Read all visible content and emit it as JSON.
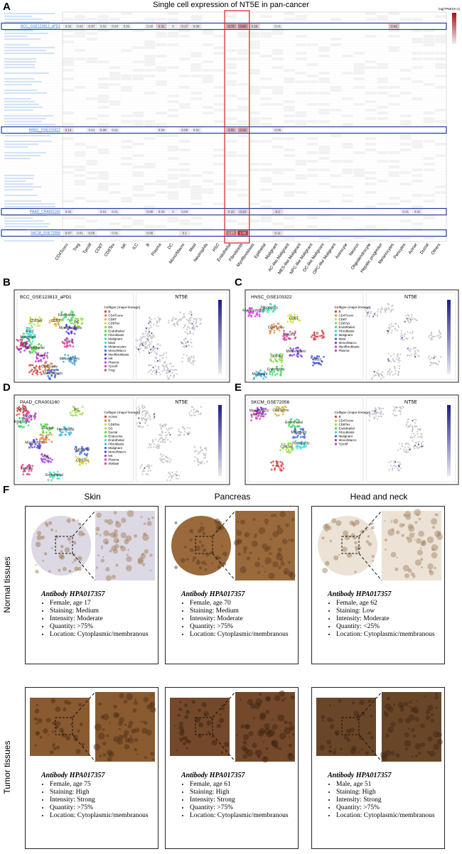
{
  "panel_labels": [
    "A",
    "B",
    "C",
    "D",
    "E",
    "F"
  ],
  "heatmap": {
    "title": "Single cell expression of NT5E in pan-cancer",
    "colorbar_label": "log(TPM/10+1)",
    "color_lim": [
      0,
      2
    ],
    "columns": [
      "CD4Tconv",
      "Treg",
      "Tprolif",
      "CD8T",
      "CD8Tex",
      "NK",
      "ILC",
      "B",
      "Plasma",
      "DC",
      "Mono/Macro",
      "Mast",
      "Neutrophils",
      "HSC",
      "Endothelial",
      "Fibroblasts",
      "Myofibroblasts",
      "Epithelial",
      "Malignant",
      "AC-like Malignant",
      "MES-like Malignant",
      "NPC-like Malignant",
      "OC-like Malignant",
      "OPC-like Malignant",
      "Astrocyte",
      "Neuron",
      "Oligodendrocyte",
      "Hepatic progenitor",
      "Melanocytes",
      "Pericytes",
      "Acinar",
      "Ductal",
      "Others"
    ],
    "rows": [
      {
        "name": "BCC_GSE123813_aPD1",
        "values": [
          0.02,
          0.02,
          0.07,
          0.02,
          0.04,
          0.02,
          null,
          0.02,
          0.32,
          0,
          0.17,
          0.09,
          null,
          null,
          0.75,
          0.92,
          0.29,
          null,
          0.01,
          null,
          null,
          null,
          null,
          null,
          null,
          null,
          null,
          null,
          0.42,
          null,
          null,
          null,
          null
        ]
      },
      {
        "name": "HNSC_GSE103322",
        "values": [
          0.14,
          null,
          0.01,
          0.08,
          0.01,
          null,
          null,
          null,
          0.04,
          null,
          0.08,
          0.02,
          null,
          null,
          0.55,
          0.68,
          null,
          null,
          0.06,
          null,
          null,
          null,
          null,
          null,
          null,
          null,
          null,
          null,
          null,
          null,
          null,
          null,
          null
        ]
      },
      {
        "name": "PAAD_CRA001160",
        "values": [
          0.02,
          null,
          null,
          0.01,
          0.01,
          null,
          null,
          0.06,
          0.03,
          0,
          0.04,
          null,
          null,
          null,
          0.15,
          0.24,
          null,
          null,
          0.2,
          null,
          null,
          null,
          null,
          null,
          null,
          null,
          null,
          null,
          null,
          0.01,
          0.02,
          null,
          null
        ]
      },
      {
        "name": "SKCM_GSE72056",
        "values": [
          0.07,
          0.01,
          0.05,
          null,
          0.01,
          null,
          null,
          0.06,
          null,
          null,
          0.1,
          null,
          null,
          null,
          1.07,
          1.56,
          null,
          null,
          0.11,
          null,
          null,
          null,
          null,
          null,
          null,
          null,
          null,
          null,
          null,
          null,
          null,
          null,
          null
        ]
      }
    ]
  },
  "umaps": [
    {
      "dataset": "BCC_GSE123813_aPD1",
      "gene": "NT5E",
      "legend_title": "Celltype (major-lineage)",
      "celltypes": [
        "B",
        "CD4Tconv",
        "CD8T",
        "CD8Tex",
        "DC",
        "Endothelial",
        "Fibroblasts",
        "Malignant",
        "Mast",
        "Melanocytes",
        "Mono/Macro",
        "Myofibroblasts",
        "NK",
        "Plasma",
        "Tprolif",
        "Treg"
      ]
    },
    {
      "dataset": "HNSC_GSE103322",
      "gene": "NT5E",
      "legend_title": "Celltype (major-lineage)",
      "celltypes": [
        "B",
        "CD4Tconv",
        "CD8T",
        "CD8Tex",
        "Endothelial",
        "Fibroblasts",
        "Malignant",
        "Mast",
        "Mono/Macro",
        "Myofibroblasts",
        "Plasma"
      ]
    },
    {
      "dataset": "PAAD_CRA001160",
      "gene": "NT5E",
      "legend_title": "Celltype (major-lineage)",
      "celltypes": [
        "Acinar",
        "B",
        "CD8Tex",
        "DC",
        "Ductal",
        "Endocrine",
        "Endothelial",
        "Fibroblasts",
        "Malignant",
        "Mono/Macro",
        "NK",
        "Plasma",
        "Stellate"
      ]
    },
    {
      "dataset": "SKCM_GSE72056",
      "gene": "NT5E",
      "legend_title": "Celltype (major-lineage)",
      "celltypes": [
        "B",
        "CD4Tconv",
        "CD8Tex",
        "Endothelial",
        "Fibroblasts",
        "Malignant",
        "Mono/Macro",
        "Tprolif"
      ]
    }
  ],
  "tissues": {
    "column_titles": [
      "Skin",
      "Pancreas",
      "Head and neck"
    ],
    "row_titles": [
      "Normal tissues",
      "Tumor tissues"
    ],
    "cards": [
      {
        "antibody": "Antibody HPA017357",
        "items": [
          "Female, age 17",
          "Staining: Medium",
          "Intensity: Moderate",
          "Quantity: >75%",
          "Location: Cytoplasmic/membranous"
        ]
      },
      {
        "antibody": "Antibody HPA017357",
        "items": [
          "Female, age 70",
          "Staining: Medium",
          "Intensity: Moderate",
          "Quantity: >75%",
          "Location: Cytoplasmic/membranous"
        ]
      },
      {
        "antibody": "Antibody HPA017357",
        "items": [
          "Female, age 62",
          "Staining: Low",
          "Intensity: Moderate",
          "Quantity: <25%",
          "Location: Cytoplasmic/membranous"
        ]
      },
      {
        "antibody": "Antibody HPA017357",
        "items": [
          "Female, age 75",
          "Staining: High",
          "Intensity: Strong",
          "Quantity: >75%",
          "Location: Cytoplasmic/membranous"
        ]
      },
      {
        "antibody": "Antibody HPA017357",
        "items": [
          "Female, age 61",
          "Staining: High",
          "Intensity: Strong",
          "Quantity: >75%",
          "Location: Cytoplasmic/membranous"
        ]
      },
      {
        "antibody": "Antibody HPA017357",
        "items": [
          "Male, age 51",
          "Staining: High",
          "Intensity: Strong",
          "Quantity: >75%",
          "Location: Cytoplasmic/membranous"
        ]
      }
    ]
  }
}
